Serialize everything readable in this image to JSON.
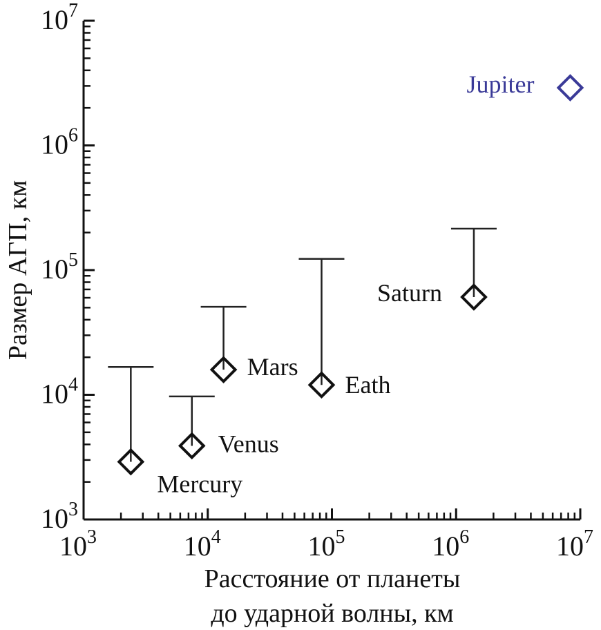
{
  "chart_data": {
    "type": "scatter",
    "xlabel_line1": "Расстояние от планеты",
    "xlabel_line2": "до ударной волны, км",
    "ylabel": "Размер АГП, км",
    "x_scale": "log",
    "y_scale": "log",
    "xlim": [
      1000,
      10000000
    ],
    "ylim": [
      1000,
      10000000
    ],
    "x_ticks": [
      {
        "base": "10",
        "exp": "3",
        "value": 1000
      },
      {
        "base": "10",
        "exp": "4",
        "value": 10000
      },
      {
        "base": "10",
        "exp": "5",
        "value": 100000
      },
      {
        "base": "10",
        "exp": "6",
        "value": 1000000
      },
      {
        "base": "10",
        "exp": "7",
        "value": 10000000
      }
    ],
    "y_ticks": [
      {
        "base": "10",
        "exp": "3",
        "value": 1000
      },
      {
        "base": "10",
        "exp": "4",
        "value": 10000
      },
      {
        "base": "10",
        "exp": "5",
        "value": 100000
      },
      {
        "base": "10",
        "exp": "6",
        "value": 1000000
      },
      {
        "base": "10",
        "exp": "7",
        "value": 10000000
      }
    ],
    "grid": false,
    "marker": "diamond",
    "points": [
      {
        "label": "Mercury",
        "x": 2400,
        "y": 2900,
        "upper": 16700,
        "color": "#111111"
      },
      {
        "label": "Venus",
        "x": 7450,
        "y": 3900,
        "upper": 9700,
        "color": "#111111"
      },
      {
        "label": "Mars",
        "x": 13400,
        "y": 15900,
        "upper": 50800,
        "color": "#111111"
      },
      {
        "label": "Eath",
        "x": 82500,
        "y": 12000,
        "upper": 123000,
        "color": "#111111"
      },
      {
        "label": "Saturn",
        "x": 1390000,
        "y": 60800,
        "upper": 215000,
        "color": "#111111"
      },
      {
        "label": "Jupiter",
        "x": 8300000,
        "y": 2900000,
        "upper": null,
        "color": "#3a3a98"
      }
    ]
  }
}
